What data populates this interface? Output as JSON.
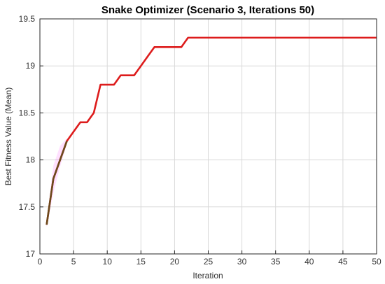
{
  "chart_data": {
    "type": "line",
    "title": "Snake Optimizer (Scenario 3, Iterations 50)",
    "xlabel": "Iteration",
    "ylabel": "Best Fitness Value (Mean)",
    "xlim": [
      0,
      50
    ],
    "ylim": [
      17,
      19.5
    ],
    "xticks": [
      0,
      5,
      10,
      15,
      20,
      25,
      30,
      35,
      40,
      45,
      50
    ],
    "xtick_labels": [
      "0",
      "5",
      "10",
      "15",
      "20",
      "25",
      "30",
      "35",
      "40",
      "45",
      "50"
    ],
    "yticks": [
      17,
      17.5,
      18,
      18.5,
      19,
      19.5
    ],
    "ytick_labels": [
      "17",
      "17.5",
      "18",
      "18.5",
      "19",
      "19.5"
    ],
    "grid": true,
    "colors": {
      "line": "#dd1c1c",
      "early_line": "#6b4a1c",
      "band": "#ff00ff",
      "grid": "#d9d9d9",
      "axis": "#262626"
    },
    "series": [
      {
        "x": [
          1,
          2,
          3,
          4,
          5,
          6,
          7,
          8,
          9,
          10,
          11,
          12,
          13,
          14,
          15,
          16,
          17,
          18,
          19,
          20,
          21,
          22,
          23,
          24,
          25,
          26,
          27,
          28,
          29,
          30,
          31,
          32,
          33,
          34,
          35,
          36,
          37,
          38,
          39,
          40,
          41,
          42,
          43,
          44,
          45,
          46,
          47,
          48,
          49,
          50
        ],
        "values": [
          17.31,
          17.8,
          18.0,
          18.2,
          18.3,
          18.4,
          18.4,
          18.5,
          18.8,
          18.8,
          18.8,
          18.9,
          18.9,
          18.9,
          19.0,
          19.1,
          19.2,
          19.2,
          19.2,
          19.2,
          19.2,
          19.3,
          19.3,
          19.3,
          19.3,
          19.3,
          19.3,
          19.3,
          19.3,
          19.3,
          19.3,
          19.3,
          19.3,
          19.3,
          19.3,
          19.3,
          19.3,
          19.3,
          19.3,
          19.3,
          19.3,
          19.3,
          19.3,
          19.3,
          19.3,
          19.3,
          19.3,
          19.3,
          19.3,
          19.3
        ]
      }
    ],
    "band": {
      "x": [
        1,
        2,
        3,
        4
      ],
      "lower": [
        17.28,
        17.65,
        17.93,
        18.17
      ],
      "upper": [
        17.34,
        17.94,
        18.15,
        18.23
      ]
    }
  }
}
